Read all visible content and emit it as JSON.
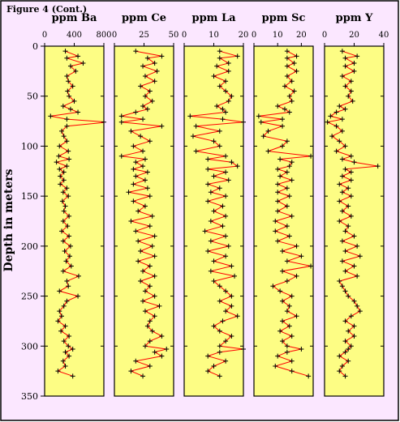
{
  "figure_label": "Figure 4 (Cont.)",
  "y_axis_label": "Depth in meters",
  "colors": {
    "page_background": "#ffffff",
    "frame_background": "#fbe7ff",
    "panel_fill": "#fdfd84",
    "line": "#ff0000",
    "marker": "#000000"
  },
  "chart_data": {
    "type": "line",
    "depth_axis": {
      "range": [
        0,
        350
      ],
      "ticks": [
        0,
        50,
        100,
        150,
        200,
        250,
        300,
        350
      ],
      "label": "Depth in meters",
      "inverted": true
    },
    "grid": false,
    "depths": [
      5,
      10,
      12,
      17,
      20,
      25,
      30,
      35,
      40,
      45,
      50,
      55,
      60,
      63,
      66,
      70,
      73,
      76,
      80,
      85,
      90,
      95,
      100,
      105,
      110,
      113,
      116,
      120,
      123,
      126,
      130,
      134,
      138,
      142,
      146,
      150,
      155,
      160,
      165,
      170,
      175,
      180,
      185,
      190,
      195,
      200,
      205,
      210,
      215,
      220,
      225,
      230,
      235,
      240,
      245,
      250,
      255,
      260,
      265,
      270,
      275,
      280,
      285,
      290,
      295,
      300,
      303,
      306,
      310,
      315,
      320,
      325,
      330
    ],
    "panels": [
      {
        "title": "ppm Ba",
        "xlim": [
          0,
          800
        ],
        "xticks": [
          0,
          400,
          800
        ],
        "values": [
          280,
          450,
          300,
          520,
          350,
          420,
          300,
          320,
          380,
          310,
          330,
          400,
          250,
          350,
          450,
          80,
          300,
          850,
          300,
          230,
          260,
          300,
          200,
          320,
          190,
          330,
          160,
          300,
          200,
          260,
          210,
          260,
          210,
          300,
          250,
          320,
          240,
          280,
          260,
          330,
          250,
          310,
          230,
          330,
          250,
          350,
          270,
          340,
          290,
          360,
          250,
          460,
          300,
          320,
          200,
          450,
          300,
          260,
          200,
          230,
          180,
          280,
          220,
          330,
          260,
          320,
          380,
          280,
          330,
          250,
          280,
          180,
          380
        ]
      },
      {
        "title": "ppm Ce",
        "xlim": [
          0,
          50
        ],
        "xticks": [
          0,
          25,
          50
        ],
        "values": [
          18,
          40,
          28,
          34,
          24,
          36,
          26,
          34,
          22,
          30,
          26,
          32,
          24,
          28,
          18,
          6,
          24,
          6,
          40,
          14,
          22,
          30,
          16,
          24,
          6,
          26,
          18,
          24,
          16,
          28,
          18,
          26,
          16,
          28,
          12,
          30,
          16,
          26,
          20,
          32,
          14,
          30,
          18,
          34,
          20,
          32,
          22,
          34,
          20,
          30,
          24,
          34,
          22,
          30,
          26,
          34,
          24,
          38,
          26,
          34,
          30,
          28,
          32,
          40,
          30,
          26,
          44,
          34,
          40,
          18,
          30,
          14,
          24
        ]
      },
      {
        "title": "ppm La",
        "xlim": [
          0,
          20
        ],
        "xticks": [
          0,
          10,
          20
        ],
        "values": [
          12,
          18,
          12,
          15,
          11,
          15,
          10,
          14,
          12,
          14,
          16,
          15,
          11,
          13,
          14,
          2,
          13,
          20,
          4,
          12,
          3,
          10,
          12,
          4,
          14,
          8,
          16,
          18,
          8,
          14,
          10,
          15,
          8,
          12,
          9,
          14,
          8,
          13,
          10,
          14,
          9,
          13,
          7,
          14,
          9,
          15,
          8,
          14,
          10,
          16,
          9,
          17,
          10,
          12,
          14,
          16,
          12,
          16,
          14,
          18,
          13,
          10,
          12,
          16,
          14,
          12,
          20,
          12,
          8,
          14,
          10,
          8,
          12
        ]
      },
      {
        "title": "ppm Sc",
        "xlim": [
          0,
          25
        ],
        "xticks": [
          0,
          10,
          20
        ],
        "values": [
          14,
          18,
          14,
          17,
          14,
          18,
          14,
          16,
          13,
          17,
          15,
          16,
          10,
          13,
          15,
          2,
          12,
          3,
          12,
          6,
          4,
          14,
          12,
          6,
          24,
          11,
          16,
          15,
          10,
          14,
          11,
          16,
          10,
          14,
          10,
          15,
          10,
          14,
          10,
          16,
          9,
          14,
          9,
          15,
          10,
          18,
          12,
          20,
          14,
          24,
          12,
          18,
          14,
          8,
          11,
          16,
          12,
          15,
          14,
          18,
          12,
          15,
          11,
          16,
          12,
          14,
          20,
          14,
          10,
          16,
          9,
          16,
          23
        ]
      },
      {
        "title": "ppm Y",
        "xlim": [
          0,
          40
        ],
        "xticks": [
          0,
          20,
          40
        ],
        "values": [
          12,
          22,
          14,
          20,
          14,
          20,
          12,
          18,
          14,
          18,
          16,
          19,
          10,
          14,
          8,
          4,
          12,
          2,
          8,
          12,
          5,
          10,
          14,
          8,
          18,
          12,
          20,
          36,
          14,
          18,
          12,
          18,
          10,
          16,
          12,
          18,
          10,
          16,
          12,
          18,
          10,
          16,
          14,
          20,
          12,
          22,
          14,
          24,
          12,
          20,
          14,
          22,
          10,
          12,
          14,
          16,
          20,
          22,
          24,
          18,
          14,
          20,
          16,
          20,
          14,
          18,
          16,
          14,
          10,
          16,
          12,
          10,
          14
        ]
      }
    ]
  }
}
